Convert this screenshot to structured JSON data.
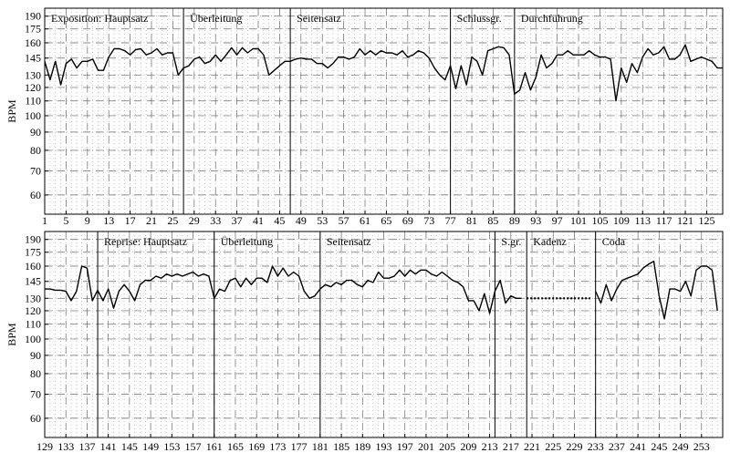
{
  "chart_data": [
    {
      "type": "line",
      "title": "",
      "xlabel": "",
      "ylabel": "BPM",
      "y_scale": "log",
      "ylim": [
        53,
        200
      ],
      "xlim": [
        1,
        128
      ],
      "grid": true,
      "y_ticks": [
        60,
        70,
        80,
        90,
        100,
        110,
        120,
        130,
        145,
        160,
        175,
        190
      ],
      "x_ticks": [
        1,
        5,
        9,
        13,
        17,
        21,
        25,
        29,
        33,
        37,
        41,
        45,
        49,
        53,
        57,
        61,
        65,
        69,
        73,
        77,
        81,
        85,
        89,
        93,
        97,
        101,
        105,
        109,
        113,
        117,
        121,
        125
      ],
      "section_boundaries": [
        27,
        47,
        77,
        89
      ],
      "sections": [
        {
          "label": "Exposition: Hauptsatz",
          "start": 1
        },
        {
          "label": "Überleitung",
          "start": 27
        },
        {
          "label": "Seitensatz",
          "start": 47
        },
        {
          "label": "Schlussgr.",
          "start": 77
        },
        {
          "label": "Durchführung",
          "start": 89
        }
      ],
      "series": [
        {
          "x": [
            1,
            2,
            3,
            4,
            5,
            6,
            7,
            8,
            9,
            10,
            11,
            12,
            13,
            14,
            15,
            16,
            17,
            18,
            19,
            20,
            21,
            22,
            23,
            24,
            25,
            26,
            27,
            28,
            29,
            30,
            31,
            32,
            33,
            34,
            35,
            36,
            37,
            38,
            39,
            40,
            41,
            42,
            43,
            44,
            45,
            46,
            47,
            48,
            49,
            50,
            51,
            52,
            53,
            54,
            55,
            56,
            57,
            58,
            59,
            60,
            61,
            62,
            63,
            64,
            65,
            66,
            67,
            68,
            69,
            70,
            71,
            72,
            73,
            74,
            75,
            76,
            77,
            78,
            79,
            80,
            81,
            82,
            83,
            84,
            85,
            86,
            87,
            88,
            89,
            90,
            91,
            92,
            93,
            94,
            95,
            96,
            97,
            98,
            99,
            100,
            101,
            102,
            103,
            104,
            105,
            106,
            107,
            108,
            109,
            110,
            111,
            112,
            113,
            114,
            115,
            116,
            117,
            118,
            119,
            120,
            121,
            122,
            123,
            124,
            125,
            126,
            127,
            128
          ],
          "values": [
            142,
            126,
            142,
            122,
            140,
            144,
            136,
            142,
            142,
            144,
            134,
            134,
            146,
            154,
            154,
            152,
            148,
            153,
            154,
            148,
            150,
            154,
            148,
            150,
            150,
            130,
            136,
            138,
            144,
            146,
            140,
            142,
            148,
            142,
            148,
            155,
            148,
            155,
            150,
            154,
            154,
            148,
            130,
            134,
            138,
            142,
            142,
            144,
            145,
            144,
            144,
            140,
            140,
            136,
            140,
            146,
            146,
            144,
            146,
            154,
            148,
            152,
            148,
            152,
            150,
            150,
            148,
            152,
            146,
            148,
            152,
            150,
            145,
            136,
            130,
            126,
            138,
            119,
            138,
            122,
            146,
            142,
            130,
            152,
            154,
            156,
            155,
            148,
            115,
            118,
            132,
            118,
            128,
            148,
            136,
            140,
            148,
            148,
            152,
            148,
            148,
            148,
            152,
            148,
            146,
            146,
            144,
            110,
            136,
            124,
            140,
            132,
            146,
            154,
            148,
            150,
            156,
            144,
            144,
            148,
            158,
            142,
            144,
            146,
            144,
            142,
            136,
            136
          ]
        }
      ]
    },
    {
      "type": "line",
      "title": "",
      "xlabel": "",
      "ylabel": "BPM",
      "y_scale": "log",
      "ylim": [
        53,
        200
      ],
      "xlim": [
        129,
        257
      ],
      "grid": true,
      "y_ticks": [
        60,
        70,
        80,
        90,
        100,
        110,
        120,
        130,
        145,
        160,
        175,
        190
      ],
      "x_ticks": [
        129,
        133,
        137,
        141,
        145,
        149,
        153,
        157,
        161,
        165,
        169,
        173,
        177,
        181,
        185,
        189,
        193,
        197,
        201,
        205,
        209,
        213,
        217,
        221,
        225,
        229,
        233,
        237,
        241,
        245,
        249,
        253
      ],
      "section_boundaries": [
        139,
        161,
        181,
        214,
        220,
        233
      ],
      "sections": [
        {
          "label": "Reprise: Hauptsatz",
          "start": 139
        },
        {
          "label": "Überleitung",
          "start": 161
        },
        {
          "label": "Seitensatz",
          "start": 181
        },
        {
          "label": "S.gr.",
          "start": 214
        },
        {
          "label": "Kadenz",
          "start": 220
        },
        {
          "label": "Coda",
          "start": 233
        }
      ],
      "series": [
        {
          "x": [
            129,
            130,
            131,
            132,
            133,
            134,
            135,
            136,
            137,
            138,
            139,
            140,
            141,
            142,
            143,
            144,
            145,
            146,
            147,
            148,
            149,
            150,
            151,
            152,
            153,
            154,
            155,
            156,
            157,
            158,
            159,
            160,
            161,
            162,
            163,
            164,
            165,
            166,
            167,
            168,
            169,
            170,
            171,
            172,
            173,
            174,
            175,
            176,
            177,
            178,
            179,
            180,
            181,
            182,
            183,
            184,
            185,
            186,
            187,
            188,
            189,
            190,
            191,
            192,
            193,
            194,
            195,
            196,
            197,
            198,
            199,
            200,
            201,
            202,
            203,
            204,
            205,
            206,
            207,
            208,
            209,
            210,
            211,
            212,
            213,
            214,
            215,
            216,
            217,
            218,
            219
          ],
          "values": [
            138,
            138,
            137,
            137,
            136,
            128,
            136,
            160,
            158,
            128,
            137,
            128,
            138,
            122,
            136,
            142,
            136,
            128,
            142,
            146,
            146,
            150,
            148,
            152,
            150,
            152,
            150,
            152,
            154,
            150,
            152,
            150,
            130,
            138,
            136,
            146,
            148,
            140,
            148,
            142,
            148,
            148,
            144,
            160,
            150,
            158,
            150,
            154,
            150,
            136,
            130,
            132,
            138,
            142,
            140,
            144,
            142,
            146,
            146,
            142,
            140,
            146,
            144,
            154,
            148,
            148,
            150,
            156,
            150,
            156,
            152,
            156,
            156,
            152,
            150,
            154,
            150,
            146,
            144,
            140,
            128,
            128,
            120,
            134,
            118,
            136,
            146,
            126,
            132,
            130,
            130
          ]
        },
        {
          "name": "",
          "style": "dotted",
          "x": [
            220,
            232
          ],
          "values": [
            130,
            130
          ]
        },
        {
          "x": [
            233,
            234,
            235,
            236,
            237,
            238,
            239,
            240,
            241,
            242,
            243,
            244,
            245,
            246,
            247,
            248,
            249,
            250,
            251,
            252,
            253,
            254,
            255,
            256
          ],
          "values": [
            136,
            126,
            142,
            128,
            138,
            146,
            148,
            150,
            152,
            158,
            162,
            165,
            132,
            114,
            138,
            138,
            136,
            145,
            132,
            156,
            160,
            160,
            156,
            120
          ]
        }
      ]
    }
  ]
}
